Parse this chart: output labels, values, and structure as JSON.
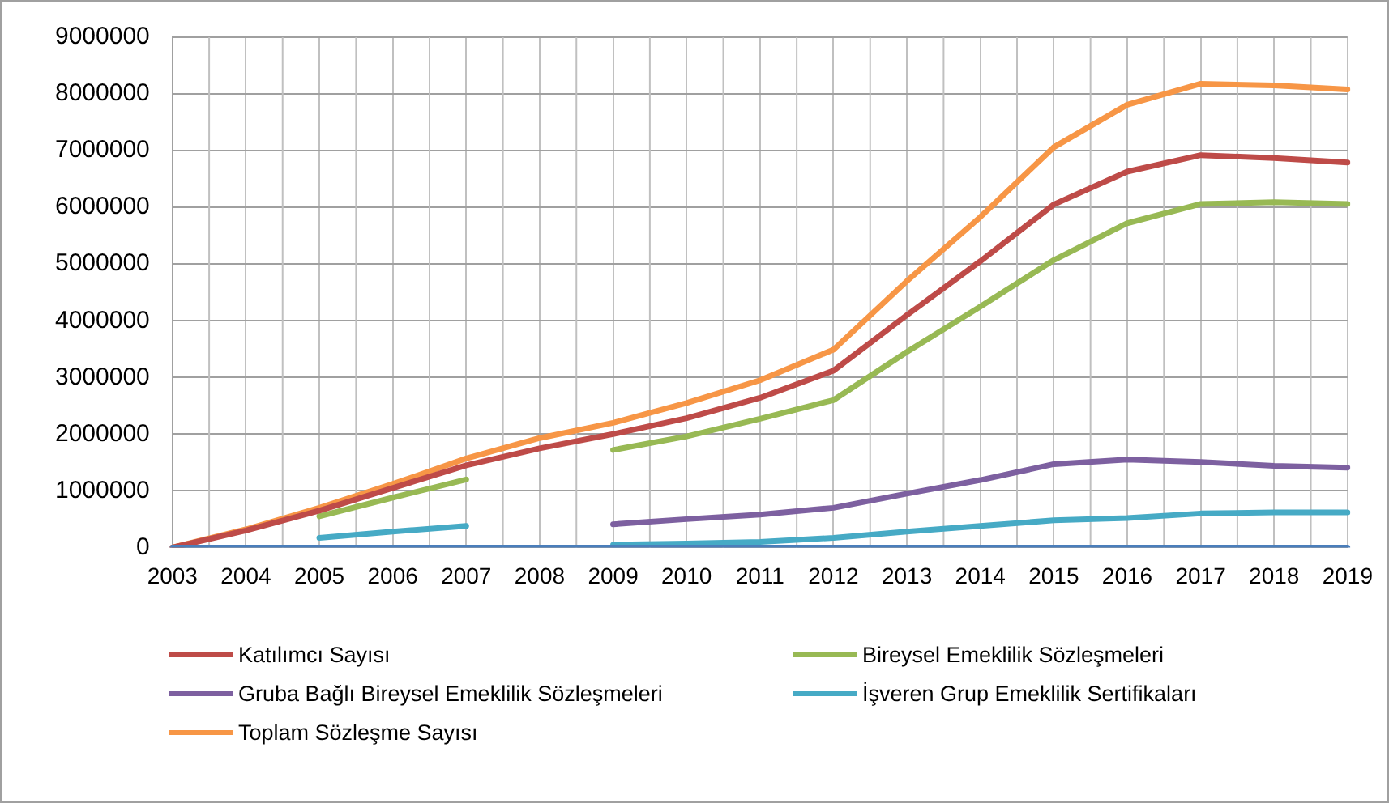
{
  "chart_data": {
    "type": "line",
    "categories": [
      "2003",
      "2004",
      "2005",
      "2006",
      "2007",
      "2008",
      "2009",
      "2010",
      "2011",
      "2012",
      "2013",
      "2014",
      "2015",
      "2016",
      "2017",
      "2018",
      "2019"
    ],
    "series": [
      {
        "color": "#4a7ebb",
        "values": [
          0,
          0,
          0,
          0,
          0,
          0,
          0,
          0,
          0,
          0,
          0,
          0,
          0,
          0,
          0,
          0,
          0
        ]
      },
      {
        "name": "Katılımcı Sayısı",
        "color": "#be4b48",
        "values": [
          0,
          300000,
          650000,
          1050000,
          1450000,
          1750000,
          2000000,
          2280000,
          2640000,
          3120000,
          4100000,
          5050000,
          6050000,
          6630000,
          6920000,
          6870000,
          6790000
        ]
      },
      {
        "name": "Bireysel Emeklilik Sözleşmeleri",
        "color": "#98b954",
        "values": [
          null,
          null,
          550000,
          880000,
          1200000,
          null,
          1720000,
          1960000,
          2270000,
          2600000,
          3450000,
          4250000,
          5070000,
          5720000,
          6060000,
          6090000,
          6060000
        ]
      },
      {
        "name": "Gruba Bağlı Bireysel Emeklilik Sözleşmeleri",
        "color": "#7d60a0",
        "values": [
          null,
          null,
          null,
          null,
          null,
          null,
          410000,
          500000,
          580000,
          700000,
          950000,
          1190000,
          1470000,
          1550000,
          1510000,
          1440000,
          1410000
        ]
      },
      {
        "name": "İşveren Grup Emeklilik Sertifikaları",
        "color": "#46aac5",
        "values": [
          null,
          null,
          170000,
          280000,
          380000,
          null,
          50000,
          70000,
          100000,
          170000,
          280000,
          380000,
          480000,
          520000,
          600000,
          620000,
          620000
        ]
      },
      {
        "name": "Toplam Sözleşme Sayısı",
        "color": "#f79646",
        "values": [
          0,
          320000,
          700000,
          1120000,
          1570000,
          1930000,
          2200000,
          2550000,
          2950000,
          3490000,
          4700000,
          5830000,
          7060000,
          7810000,
          8180000,
          8150000,
          8080000
        ]
      }
    ],
    "ylim": [
      0,
      9000000
    ],
    "yticks": [
      0,
      1000000,
      2000000,
      3000000,
      4000000,
      5000000,
      6000000,
      7000000,
      8000000,
      9000000
    ],
    "grid": true,
    "legend": "bottom",
    "marker": "none",
    "line_style": "solid"
  }
}
